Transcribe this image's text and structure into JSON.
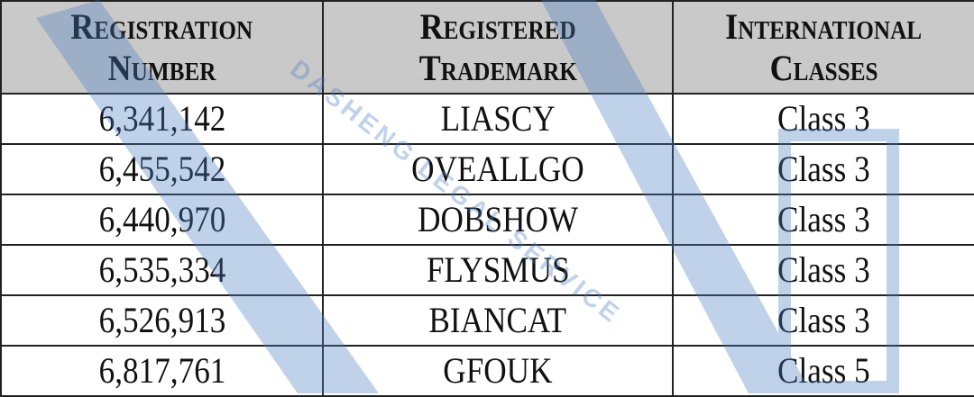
{
  "table": {
    "headers": [
      {
        "line1": "Registration",
        "line2": "Number"
      },
      {
        "line1": "Registered",
        "line2": "Trademark"
      },
      {
        "line1": "International",
        "line2": "Classes"
      }
    ],
    "rows": [
      [
        "6,341,142",
        "LIASCY",
        "Class 3"
      ],
      [
        "6,455,542",
        "OVEALLGO",
        "Class 3"
      ],
      [
        "6,440,970",
        "DOBSHOW",
        "Class 3"
      ],
      [
        "6,535,334",
        "FLYSMUS",
        "Class 3"
      ],
      [
        "6,526,913",
        "BIANCAT",
        "Class 3"
      ],
      [
        "6,817,761",
        "GFOUK",
        "Class 5"
      ]
    ]
  },
  "watermark": {
    "text": "DASHENG LEGAL SERVICE",
    "color": "#4a7fc1"
  },
  "colors": {
    "header_bg": "#c9c9c9",
    "border": "#222222"
  }
}
